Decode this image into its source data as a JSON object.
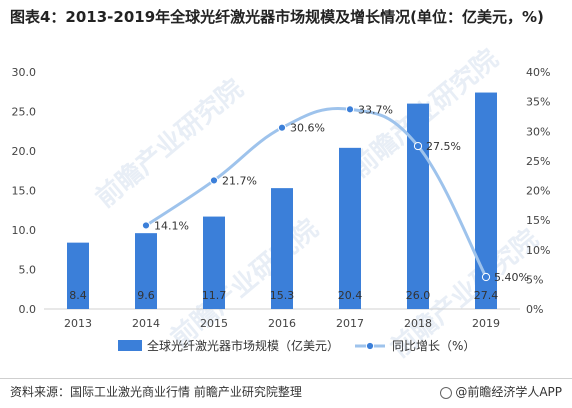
{
  "header": {
    "title": "图表4：2013-2019年全球光纤激光器市场规模及增长情况(单位：亿美元，%)"
  },
  "footer": {
    "source": "资料来源：国际工业激光商业行情 前瞻产业研究院整理",
    "brand": "@前瞻经济学人APP"
  },
  "watermark": "前瞻产业研究院",
  "chart_data": {
    "type": "bar",
    "categories": [
      "2013",
      "2014",
      "2015",
      "2016",
      "2017",
      "2018",
      "2019"
    ],
    "series": [
      {
        "name": "全球光纤激光器市场规模（亿美元）",
        "type": "bar",
        "axis": "left",
        "color": "#3b7fd9",
        "values": [
          8.4,
          9.6,
          11.7,
          15.3,
          20.4,
          26.0,
          27.4
        ],
        "labels": [
          "8.4",
          "9.6",
          "11.7",
          "15.3",
          "20.4",
          "26.0",
          "27.4"
        ]
      },
      {
        "name": "同比增长（%）",
        "type": "line",
        "axis": "right",
        "color": "#9ec3ec",
        "x": [
          "2014",
          "2015",
          "2016",
          "2017",
          "2018",
          "2019"
        ],
        "values": [
          14.1,
          21.7,
          30.6,
          33.7,
          27.5,
          5.4
        ],
        "labels": [
          "14.1%",
          "21.7%",
          "30.6%",
          "33.7%",
          "27.5%",
          "5.40%"
        ]
      }
    ],
    "y_left": {
      "ylim": [
        0,
        30
      ],
      "ticks": [
        "0.0",
        "5.0",
        "10.0",
        "15.0",
        "20.0",
        "25.0",
        "30.0"
      ]
    },
    "y_right": {
      "ylim": [
        0,
        40
      ],
      "ticks": [
        "0%",
        "5%",
        "10%",
        "15%",
        "20%",
        "25%",
        "30%",
        "35%",
        "40%"
      ]
    },
    "grid": false,
    "legend_position": "bottom"
  }
}
